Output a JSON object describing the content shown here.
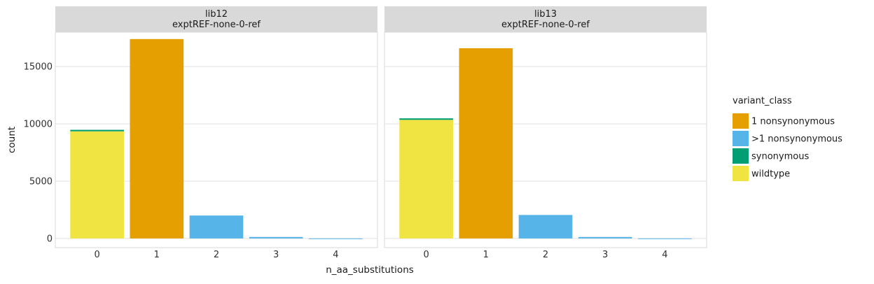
{
  "chart_data": {
    "type": "bar",
    "stacked": true,
    "xlabel": "n_aa_substitutions",
    "ylabel": "count",
    "ylim": [
      -800,
      18000
    ],
    "yticks": [
      0,
      5000,
      10000,
      15000
    ],
    "categories": [
      "0",
      "1",
      "2",
      "3",
      "4"
    ],
    "legend": {
      "title": "variant_class",
      "position": "right",
      "entries": [
        {
          "name": "1 nonsynonymous",
          "color": "#E69F00"
        },
        {
          "name": ">1 nonsynonymous",
          "color": "#56B4E9"
        },
        {
          "name": "synonymous",
          "color": "#009E73"
        },
        {
          "name": "wildtype",
          "color": "#F0E442"
        }
      ]
    },
    "grid": true,
    "panels": [
      {
        "strip_line1": "lib12",
        "strip_line2": "exptREF-none-0-ref",
        "series": [
          {
            "name": "wildtype",
            "values": [
              9350,
              0,
              0,
              0,
              0
            ]
          },
          {
            "name": "synonymous",
            "values": [
              130,
              0,
              0,
              0,
              0
            ]
          },
          {
            "name": "1 nonsynonymous",
            "values": [
              0,
              17400,
              0,
              0,
              0
            ]
          },
          {
            "name": ">1 nonsynonymous",
            "values": [
              0,
              0,
              2000,
              130,
              5
            ]
          }
        ]
      },
      {
        "strip_line1": "lib13",
        "strip_line2": "exptREF-none-0-ref",
        "series": [
          {
            "name": "wildtype",
            "values": [
              10350,
              0,
              0,
              0,
              0
            ]
          },
          {
            "name": "synonymous",
            "values": [
              130,
              0,
              0,
              0,
              0
            ]
          },
          {
            "name": "1 nonsynonymous",
            "values": [
              0,
              16600,
              0,
              0,
              0
            ]
          },
          {
            "name": ">1 nonsynonymous",
            "values": [
              0,
              0,
              2050,
              130,
              5
            ]
          }
        ]
      }
    ]
  }
}
